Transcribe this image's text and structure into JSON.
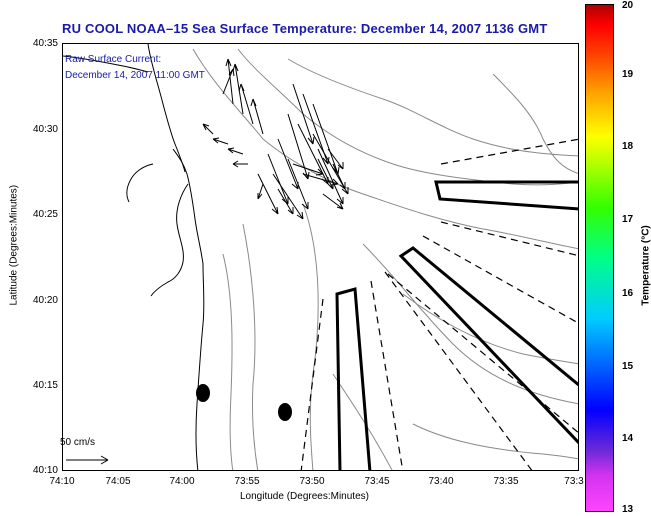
{
  "title": "RU COOL  NOAA–15  Sea Surface Temperature:  December 14, 2007 1136 GMT",
  "annotation": {
    "line1": "Raw Surface Current:",
    "line2": "December 14, 2007 11:00 GMT"
  },
  "axes": {
    "xlabel": "Longitude (Degrees:Minutes)",
    "ylabel": "Latitude (Degrees:Minutes)",
    "xticks": [
      "74:10",
      "74:05",
      "74:00",
      "73:55",
      "73:50",
      "73:45",
      "73:40",
      "73:35",
      "73:3"
    ],
    "yticks": [
      "40:35",
      "40:30",
      "40:25",
      "40:20",
      "40:15",
      "40:10"
    ]
  },
  "scale_vector": {
    "label": "50 cm/s"
  },
  "colorbar": {
    "label": "Temperature (°C)",
    "ticks": [
      "20",
      "19",
      "18",
      "17",
      "16",
      "15",
      "14",
      "13"
    ],
    "min": 13,
    "max": 20
  },
  "colors": {
    "title": "#1a1aa8",
    "contour": "#888888",
    "coast": "#000000"
  }
}
